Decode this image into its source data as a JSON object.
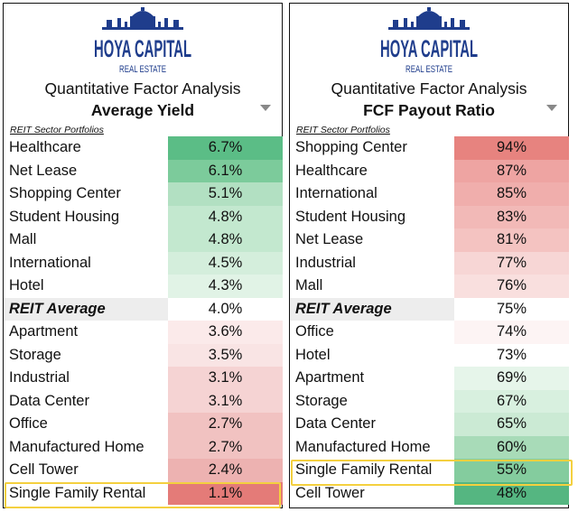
{
  "brand": {
    "name": "HOYA CAPITAL",
    "tagline": "REAL ESTATE"
  },
  "chart_data": [
    {
      "type": "table",
      "subtitle": "Quantitative Factor Analysis",
      "title": "Average Yield",
      "section_label": "REIT Sector Portfolios",
      "unit": "%",
      "highlighted": "Single Family Rental",
      "rows": [
        {
          "label": "Healthcare",
          "value": 6.7,
          "display": "6.7%",
          "color": "#5bbd86"
        },
        {
          "label": "Net Lease",
          "value": 6.1,
          "display": "6.1%",
          "color": "#7ccb9b"
        },
        {
          "label": "Shopping Center",
          "value": 5.1,
          "display": "5.1%",
          "color": "#b2e0c2"
        },
        {
          "label": "Student Housing",
          "value": 4.8,
          "display": "4.8%",
          "color": "#c3e8cf"
        },
        {
          "label": "Mall",
          "value": 4.8,
          "display": "4.8%",
          "color": "#c3e8cf"
        },
        {
          "label": "International",
          "value": 4.5,
          "display": "4.5%",
          "color": "#d4eedc"
        },
        {
          "label": "Hotel",
          "value": 4.3,
          "display": "4.3%",
          "color": "#e1f3e6"
        },
        {
          "label": "REIT Average",
          "value": 4.0,
          "display": "4.0%",
          "color": "#ffffff",
          "average": true
        },
        {
          "label": "Apartment",
          "value": 3.6,
          "display": "3.6%",
          "color": "#fbeaea"
        },
        {
          "label": "Storage",
          "value": 3.5,
          "display": "3.5%",
          "color": "#f9e4e4"
        },
        {
          "label": "Industrial",
          "value": 3.1,
          "display": "3.1%",
          "color": "#f5d3d3"
        },
        {
          "label": "Data Center",
          "value": 3.1,
          "display": "3.1%",
          "color": "#f5d3d3"
        },
        {
          "label": "Office",
          "value": 2.7,
          "display": "2.7%",
          "color": "#f1c2c1"
        },
        {
          "label": "Manufactured Home",
          "value": 2.7,
          "display": "2.7%",
          "color": "#f1c2c1"
        },
        {
          "label": "Cell Tower",
          "value": 2.4,
          "display": "2.4%",
          "color": "#edb2b1"
        },
        {
          "label": "Single Family Rental",
          "value": 1.1,
          "display": "1.1%",
          "color": "#e47b78"
        }
      ]
    },
    {
      "type": "table",
      "subtitle": "Quantitative Factor Analysis",
      "title": "FCF Payout Ratio",
      "section_label": "REIT Sector Portfolios",
      "unit": "%",
      "highlighted": "Single Family Rental",
      "rows": [
        {
          "label": "Shopping Center",
          "value": 94,
          "display": "94%",
          "color": "#e7837f"
        },
        {
          "label": "Healthcare",
          "value": 87,
          "display": "87%",
          "color": "#eea4a2"
        },
        {
          "label": "International",
          "value": 85,
          "display": "85%",
          "color": "#f0aeac"
        },
        {
          "label": "Student Housing",
          "value": 83,
          "display": "83%",
          "color": "#f2b9b7"
        },
        {
          "label": "Net Lease",
          "value": 81,
          "display": "81%",
          "color": "#f4c3c1"
        },
        {
          "label": "Industrial",
          "value": 77,
          "display": "77%",
          "color": "#f7d6d5"
        },
        {
          "label": "Mall",
          "value": 76,
          "display": "76%",
          "color": "#f9dfde"
        },
        {
          "label": "REIT Average",
          "value": 75,
          "display": "75%",
          "color": "#ffffff",
          "average": true
        },
        {
          "label": "Office",
          "value": 74,
          "display": "74%",
          "color": "#fdf4f4"
        },
        {
          "label": "Hotel",
          "value": 73,
          "display": "73%",
          "color": "#ffffff"
        },
        {
          "label": "Apartment",
          "value": 69,
          "display": "69%",
          "color": "#e6f5ea"
        },
        {
          "label": "Storage",
          "value": 67,
          "display": "67%",
          "color": "#d8f0df"
        },
        {
          "label": "Data Center",
          "value": 65,
          "display": "65%",
          "color": "#cbead4"
        },
        {
          "label": "Manufactured Home",
          "value": 60,
          "display": "60%",
          "color": "#a8dbb8"
        },
        {
          "label": "Single Family Rental",
          "value": 55,
          "display": "55%",
          "color": "#84cc9e"
        },
        {
          "label": "Cell Tower",
          "value": 48,
          "display": "48%",
          "color": "#55b681"
        }
      ]
    }
  ]
}
